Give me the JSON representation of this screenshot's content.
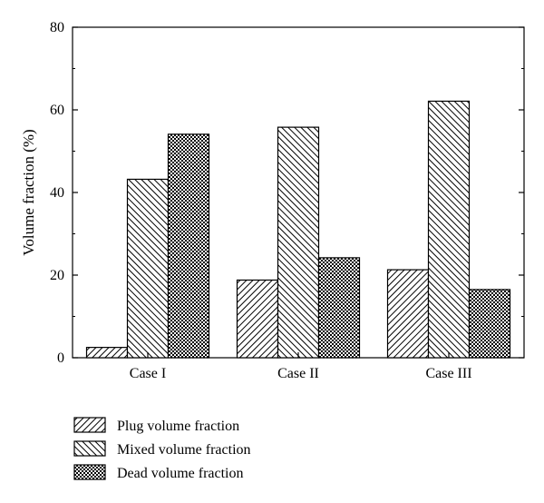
{
  "chart_data": {
    "type": "bar",
    "title": "",
    "xlabel": "",
    "ylabel": "Volume fraction (%)",
    "ylim": [
      0,
      80
    ],
    "yticks": [
      0,
      20,
      40,
      60,
      80
    ],
    "grid": false,
    "legend_position": "bottom-left",
    "categories": [
      "Case I",
      "Case II",
      "Case III"
    ],
    "series": [
      {
        "name": "Plug volume fraction",
        "values": [
          2.5,
          18.8,
          21.3
        ],
        "pattern": "hatch-forward"
      },
      {
        "name": "Mixed volume fraction",
        "values": [
          43.2,
          55.8,
          62.1
        ],
        "pattern": "hatch-backward"
      },
      {
        "name": "Dead volume fraction",
        "values": [
          54.1,
          24.2,
          16.5
        ],
        "pattern": "crosshatch"
      }
    ]
  }
}
